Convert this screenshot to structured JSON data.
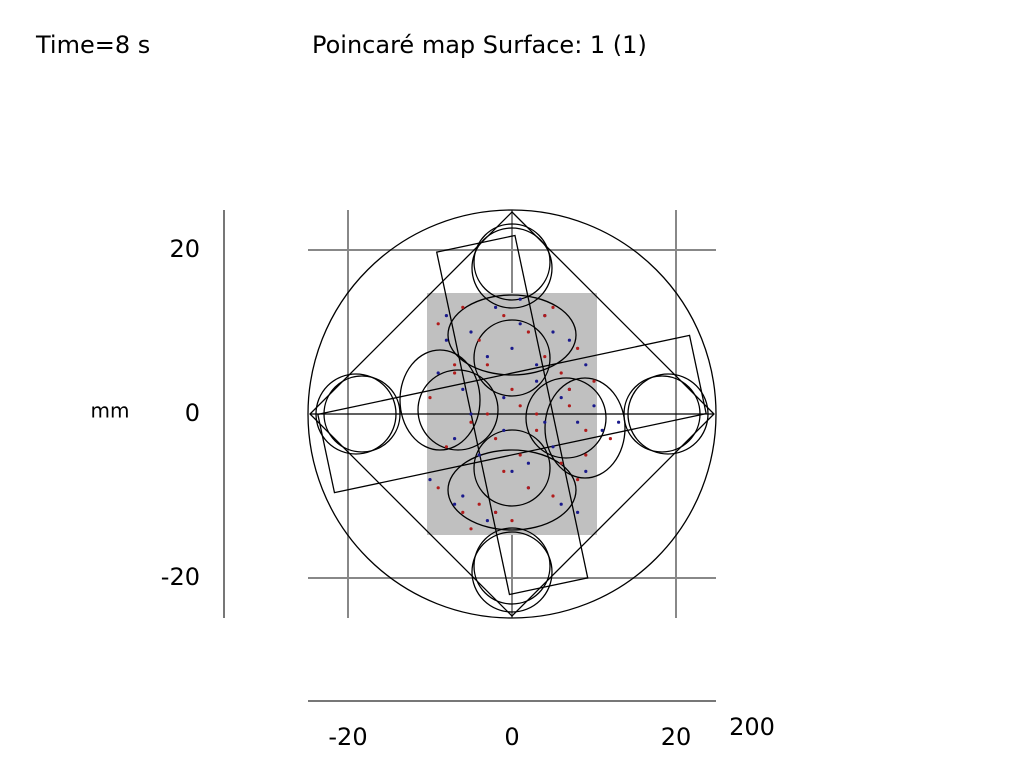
{
  "chart_data": {
    "type": "scatter",
    "time_label": "Time=8 s",
    "title": "Poincaré map  Surface: 1 (1)",
    "y_unit": "mm",
    "z_label": "200",
    "xlim": [
      -25,
      25
    ],
    "ylim": [
      -25,
      25
    ],
    "xticks": [
      -20,
      0,
      20
    ],
    "yticks": [
      20,
      0,
      -20
    ],
    "grid": true,
    "series": [
      {
        "color": "#1a1a8c",
        "x": [
          -8,
          -5,
          -2,
          1,
          4,
          7,
          9,
          -9,
          -6,
          -3,
          0,
          3,
          6,
          8,
          -7,
          -4,
          -1,
          2,
          5,
          10,
          -10,
          -6,
          -2,
          2,
          6,
          9,
          -8,
          -3,
          1,
          4,
          7,
          11,
          -5,
          0,
          3,
          -7,
          5,
          -1,
          8,
          13
        ],
        "values": [
          12,
          10,
          13,
          11,
          12,
          9,
          6,
          5,
          3,
          7,
          8,
          4,
          2,
          -1,
          -3,
          -5,
          -2,
          -6,
          -4,
          1,
          -8,
          -10,
          -12,
          -9,
          -11,
          -7,
          9,
          -13,
          14,
          -1,
          3,
          -2,
          0,
          -7,
          6,
          -11,
          10,
          2,
          -12,
          -1
        ]
      },
      {
        "color": "#b01c1c",
        "x": [
          -9,
          -6,
          -4,
          -1,
          2,
          5,
          8,
          10,
          -10,
          -7,
          -3,
          0,
          4,
          7,
          9,
          -8,
          -5,
          -2,
          1,
          3,
          6,
          -9,
          -4,
          0,
          5,
          8,
          -6,
          -1,
          3,
          7,
          -3,
          2,
          9,
          -7,
          4,
          -2,
          6,
          -5,
          1,
          12
        ],
        "values": [
          11,
          13,
          9,
          12,
          10,
          13,
          8,
          4,
          2,
          5,
          6,
          3,
          7,
          1,
          -2,
          -4,
          -1,
          -3,
          -5,
          0,
          -6,
          -9,
          -11,
          -13,
          -10,
          -8,
          -12,
          -7,
          -2,
          3,
          0,
          -9,
          -5,
          6,
          12,
          -12,
          5,
          -14,
          1,
          -3
        ]
      }
    ]
  }
}
